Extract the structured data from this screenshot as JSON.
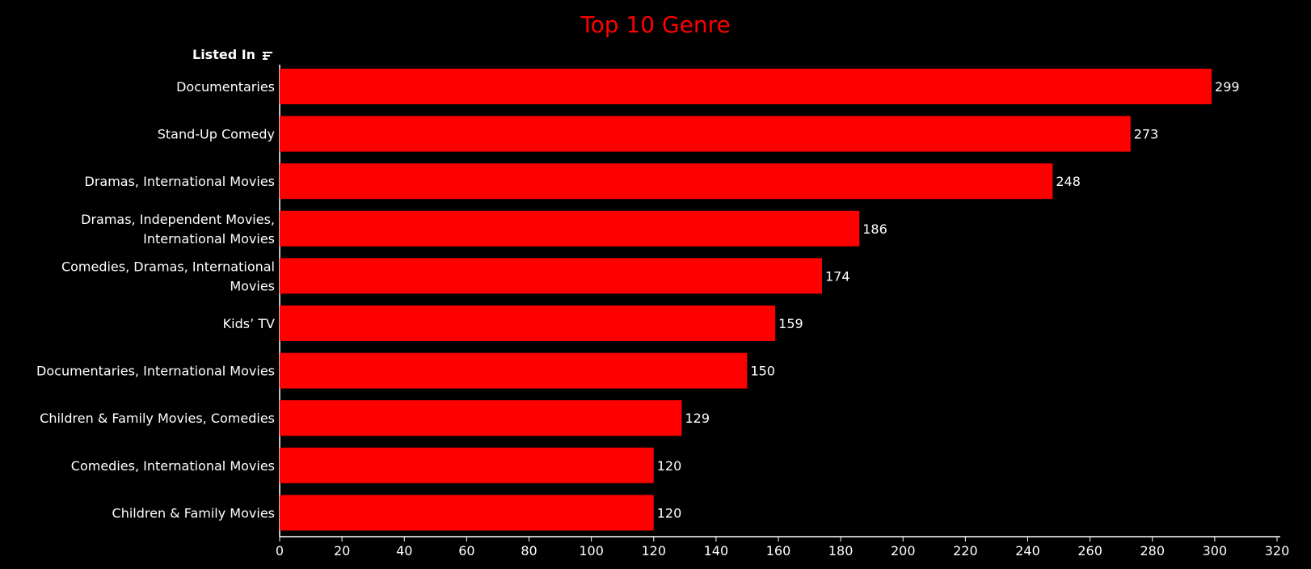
{
  "chart_data": {
    "type": "bar",
    "orientation": "horizontal",
    "title": "Top 10 Genre",
    "ylabel": "Listed In",
    "xlabel": "",
    "xlim": [
      0,
      320
    ],
    "x_ticks": [
      0,
      20,
      40,
      60,
      80,
      100,
      120,
      140,
      160,
      180,
      200,
      220,
      240,
      260,
      280,
      300,
      320
    ],
    "categories": [
      [
        "Documentaries"
      ],
      [
        "Stand-Up Comedy"
      ],
      [
        "Dramas, International Movies"
      ],
      [
        "Dramas, Independent Movies,",
        "International Movies"
      ],
      [
        "Comedies, Dramas, International",
        "Movies"
      ],
      [
        "Kids’ TV"
      ],
      [
        "Documentaries, International Movies"
      ],
      [
        "Children & Family Movies, Comedies"
      ],
      [
        "Comedies, International Movies"
      ],
      [
        "Children & Family Movies"
      ]
    ],
    "values": [
      299,
      273,
      248,
      186,
      174,
      159,
      150,
      129,
      120,
      120
    ],
    "grid": false,
    "legend": "none",
    "bar_color": "#ff0000",
    "title_color": "#ff0000",
    "background": "#000000"
  }
}
